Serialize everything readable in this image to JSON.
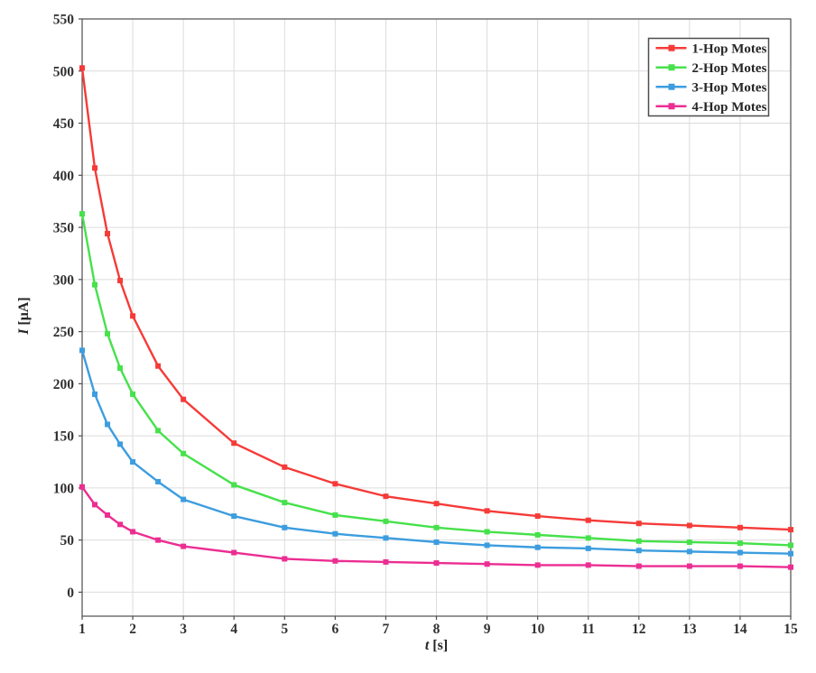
{
  "chart_data": {
    "type": "line",
    "title": "",
    "xlabel": "t [s]",
    "ylabel": "I [μA]",
    "xlim": [
      1,
      15
    ],
    "ylim": [
      -23,
      550
    ],
    "xticks": [
      1,
      2,
      3,
      4,
      5,
      6,
      7,
      8,
      9,
      10,
      11,
      12,
      13,
      14,
      15
    ],
    "yticks": [
      0,
      50,
      100,
      150,
      200,
      250,
      300,
      350,
      400,
      450,
      500,
      550
    ],
    "grid": true,
    "legend_position": "top-right",
    "x": [
      1,
      1.25,
      1.5,
      1.75,
      2,
      2.5,
      3,
      4,
      5,
      6,
      7,
      8,
      9,
      10,
      11,
      12,
      13,
      14,
      15
    ],
    "series": [
      {
        "name": "1-Hop Motes",
        "color": "#f53b38",
        "values": [
          503,
          407,
          344,
          299,
          265,
          217,
          185,
          143,
          120,
          104,
          92,
          85,
          78,
          73,
          69,
          66,
          64,
          62,
          60
        ]
      },
      {
        "name": "2-Hop Motes",
        "color": "#46e14b",
        "values": [
          363,
          295,
          248,
          215,
          190,
          155,
          133,
          103,
          86,
          74,
          68,
          62,
          58,
          55,
          52,
          49,
          48,
          47,
          45
        ]
      },
      {
        "name": "3-Hop Motes",
        "color": "#3c9ddf",
        "values": [
          232,
          190,
          161,
          142,
          125,
          106,
          89,
          73,
          62,
          56,
          52,
          48,
          45,
          43,
          42,
          40,
          39,
          38,
          37
        ]
      },
      {
        "name": "4-Hop Motes",
        "color": "#ec2d92",
        "values": [
          101,
          84,
          74,
          65,
          58,
          50,
          44,
          38,
          32,
          30,
          29,
          28,
          27,
          26,
          26,
          25,
          25,
          25,
          24
        ]
      }
    ]
  },
  "labels": {
    "xlabel_var": "t",
    "xlabel_unit": " [s]",
    "ylabel_var": "I",
    "ylabel_unit": " [μA]"
  },
  "colors": {
    "background": "#ffffff",
    "grid": "#dcdcdc",
    "axis": "#4d4d4d",
    "tick_label": "#303030",
    "legend_border": "#4d4d4d",
    "legend_text": "#262626"
  }
}
